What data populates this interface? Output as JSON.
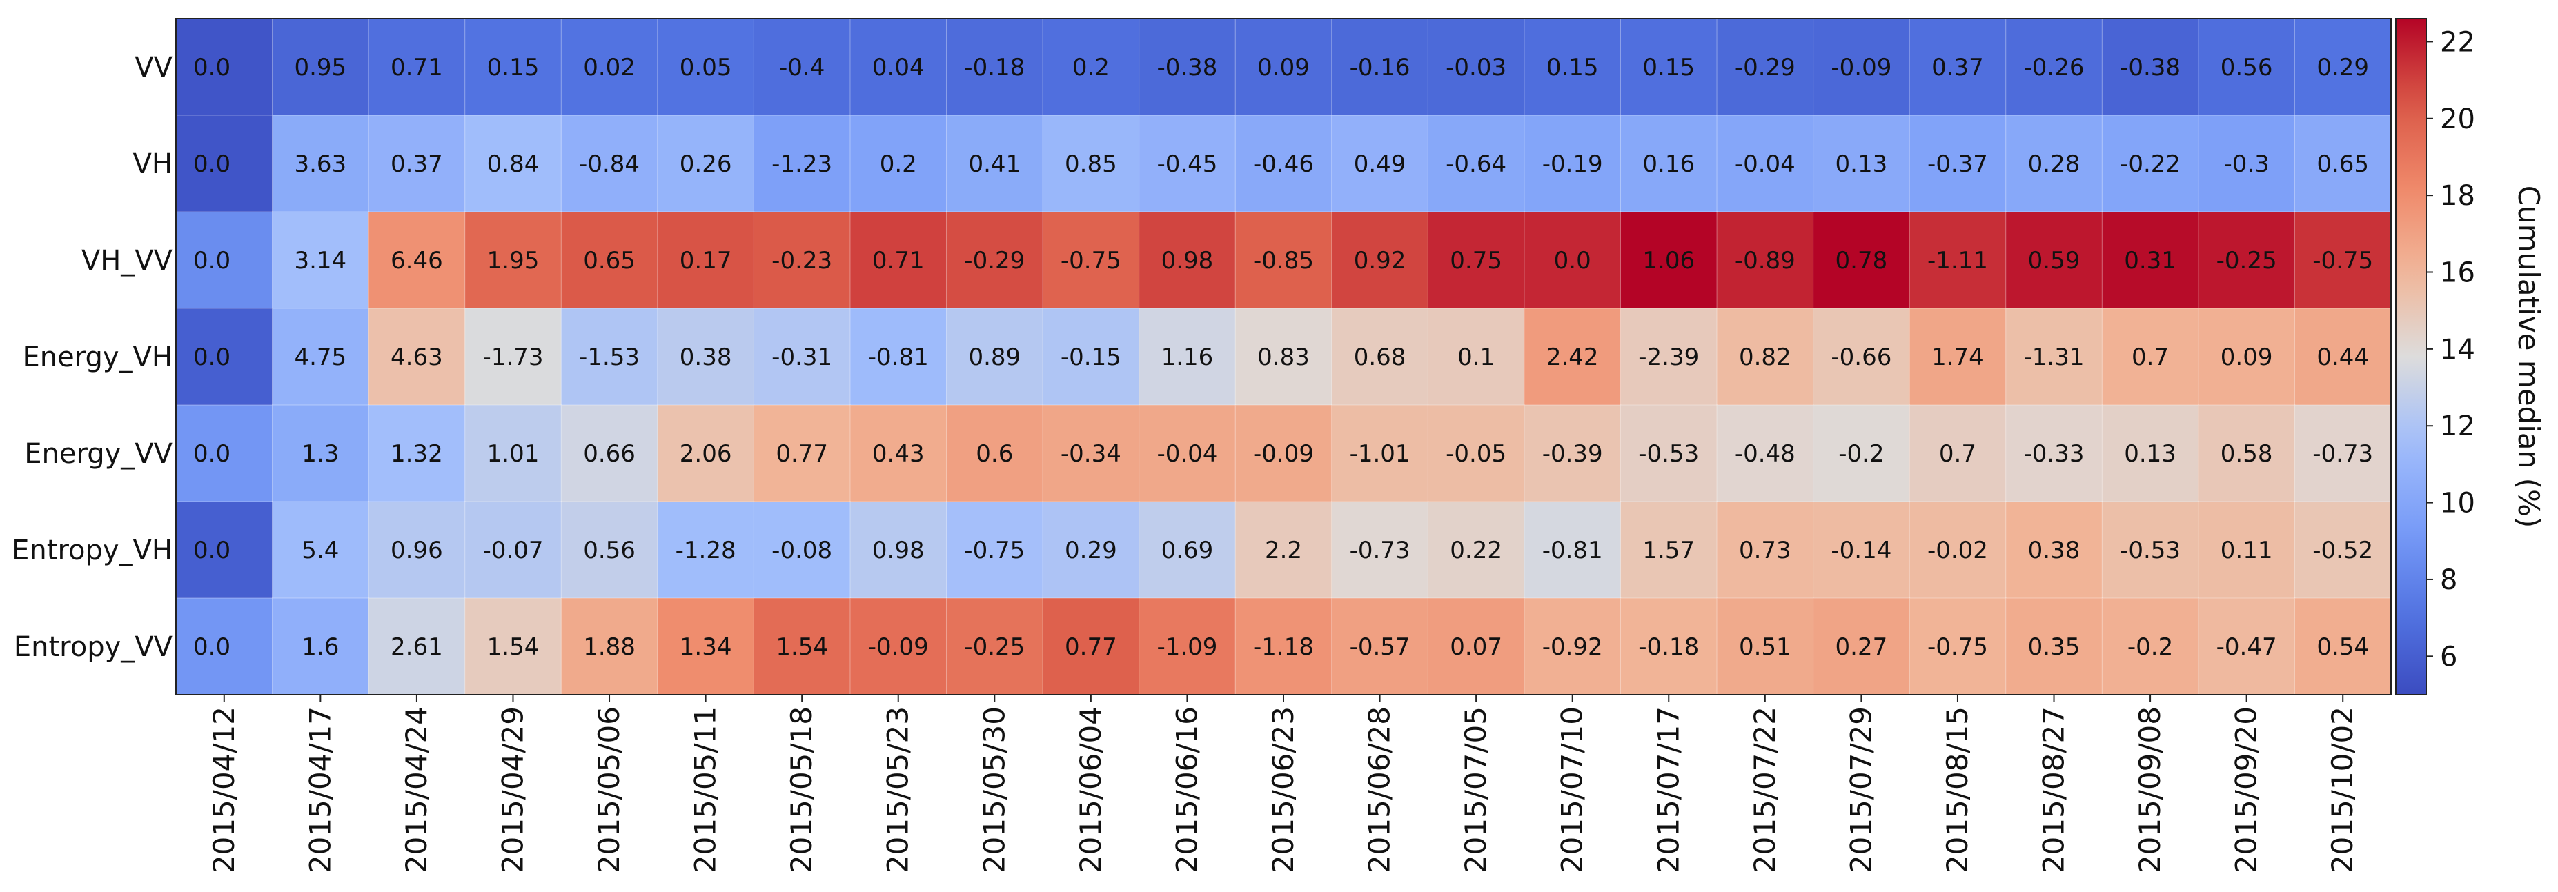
{
  "chart_data": {
    "type": "heatmap",
    "title": "",
    "rows": [
      "VV",
      "VH",
      "VH_VV",
      "Energy_VH",
      "Energy_VV",
      "Entropy_VH",
      "Entropy_VV"
    ],
    "columns": [
      "2015/04/12",
      "2015/04/17",
      "2015/04/24",
      "2015/04/29",
      "2015/05/06",
      "2015/05/11",
      "2015/05/18",
      "2015/05/23",
      "2015/05/30",
      "2015/06/04",
      "2015/06/16",
      "2015/06/23",
      "2015/06/28",
      "2015/07/05",
      "2015/07/10",
      "2015/07/17",
      "2015/07/22",
      "2015/07/29",
      "2015/08/15",
      "2015/08/27",
      "2015/09/08",
      "2015/09/20",
      "2015/10/02"
    ],
    "annotations": [
      [
        "0.0",
        "0.95",
        "0.71",
        "0.15",
        "0.02",
        "0.05",
        "-0.4",
        "0.04",
        "-0.18",
        "0.2",
        "-0.38",
        "0.09",
        "-0.16",
        "-0.03",
        "0.15",
        "0.15",
        "-0.29",
        "-0.09",
        "0.37",
        "-0.26",
        "-0.38",
        "0.56",
        "0.29"
      ],
      [
        "0.0",
        "3.63",
        "0.37",
        "0.84",
        "-0.84",
        "0.26",
        "-1.23",
        "0.2",
        "0.41",
        "0.85",
        "-0.45",
        "-0.46",
        "0.49",
        "-0.64",
        "-0.19",
        "0.16",
        "-0.04",
        "0.13",
        "-0.37",
        "0.28",
        "-0.22",
        "-0.3",
        "0.65"
      ],
      [
        "0.0",
        "3.14",
        "6.46",
        "1.95",
        "0.65",
        "0.17",
        "-0.23",
        "0.71",
        "-0.29",
        "-0.75",
        "0.98",
        "-0.85",
        "0.92",
        "0.75",
        "0.0",
        "1.06",
        "-0.89",
        "0.78",
        "-1.11",
        "0.59",
        "0.31",
        "-0.25",
        "-0.75"
      ],
      [
        "0.0",
        "4.75",
        "4.63",
        "-1.73",
        "-1.53",
        "0.38",
        "-0.31",
        "-0.81",
        "0.89",
        "-0.15",
        "1.16",
        "0.83",
        "0.68",
        "0.1",
        "2.42",
        "-2.39",
        "0.82",
        "-0.66",
        "1.74",
        "-1.31",
        "0.7",
        "0.09",
        "0.44"
      ],
      [
        "0.0",
        "1.3",
        "1.32",
        "1.01",
        "0.66",
        "2.06",
        "0.77",
        "0.43",
        "0.6",
        "-0.34",
        "-0.04",
        "-0.09",
        "-1.01",
        "-0.05",
        "-0.39",
        "-0.53",
        "-0.48",
        "-0.2",
        "0.7",
        "-0.33",
        "0.13",
        "0.58",
        "-0.73"
      ],
      [
        "0.0",
        "5.4",
        "0.96",
        "-0.07",
        "0.56",
        "-1.28",
        "-0.08",
        "0.98",
        "-0.75",
        "0.29",
        "0.69",
        "2.2",
        "-0.73",
        "0.22",
        "-0.81",
        "1.57",
        "0.73",
        "-0.14",
        "-0.02",
        "0.38",
        "-0.53",
        "0.11",
        "-0.52"
      ],
      [
        "0.0",
        "1.6",
        "2.61",
        "1.54",
        "1.88",
        "1.34",
        "1.54",
        "-0.09",
        "-0.25",
        "0.77",
        "-1.09",
        "-1.18",
        "-0.57",
        "0.07",
        "-0.92",
        "-0.18",
        "0.51",
        "0.27",
        "-0.75",
        "0.35",
        "-0.2",
        "-0.47",
        "0.54"
      ]
    ],
    "cumulative_median": [
      [
        5.5,
        6.4,
        6.9,
        7.1,
        7.1,
        7.1,
        6.8,
        6.8,
        6.7,
        6.9,
        6.6,
        6.7,
        6.6,
        6.6,
        6.8,
        6.9,
        6.6,
        6.5,
        6.9,
        6.7,
        6.3,
        6.8,
        7.1
      ],
      [
        5.5,
        10.3,
        10.7,
        11.5,
        10.6,
        10.9,
        9.6,
        9.8,
        10.3,
        11.1,
        10.7,
        10.2,
        10.7,
        10.1,
        9.9,
        10.1,
        10.0,
        10.2,
        9.8,
        10.1,
        9.9,
        9.6,
        10.2
      ],
      [
        8.5,
        11.6,
        17.8,
        19.7,
        20.3,
        20.5,
        20.3,
        21.0,
        20.7,
        19.9,
        20.9,
        20.0,
        20.9,
        21.7,
        21.7,
        22.7,
        21.8,
        22.6,
        21.5,
        22.1,
        22.4,
        22.1,
        21.4
      ],
      [
        6.0,
        10.8,
        15.4,
        13.7,
        12.1,
        12.5,
        12.2,
        11.4,
        12.3,
        12.1,
        13.3,
        14.1,
        14.8,
        14.9,
        17.3,
        14.9,
        15.7,
        15.1,
        16.8,
        15.5,
        16.2,
        16.3,
        16.7
      ],
      [
        9.0,
        10.3,
        11.6,
        12.6,
        13.3,
        15.3,
        16.1,
        16.5,
        17.1,
        16.8,
        16.7,
        16.6,
        15.6,
        15.6,
        15.2,
        14.6,
        14.2,
        14.0,
        14.7,
        14.3,
        14.5,
        15.0,
        14.3
      ],
      [
        6.0,
        11.4,
        12.3,
        12.3,
        12.8,
        11.5,
        11.5,
        12.4,
        11.7,
        12.0,
        12.7,
        14.9,
        14.1,
        14.4,
        13.5,
        15.1,
        15.8,
        15.7,
        15.7,
        16.1,
        15.5,
        15.6,
        15.1
      ],
      [
        9.0,
        10.6,
        13.2,
        14.8,
        16.6,
        18.0,
        19.5,
        19.4,
        19.2,
        20.0,
        18.9,
        17.7,
        17.1,
        17.2,
        16.3,
        16.1,
        16.6,
        16.9,
        16.1,
        16.5,
        16.3,
        15.8,
        16.4
      ]
    ],
    "colorbar": {
      "label": "Cumulative median (%)",
      "range": [
        5,
        22.6
      ],
      "ticks": [
        6,
        8,
        10,
        12,
        14,
        16,
        18,
        20,
        22
      ],
      "colormap": "coolwarm"
    }
  }
}
